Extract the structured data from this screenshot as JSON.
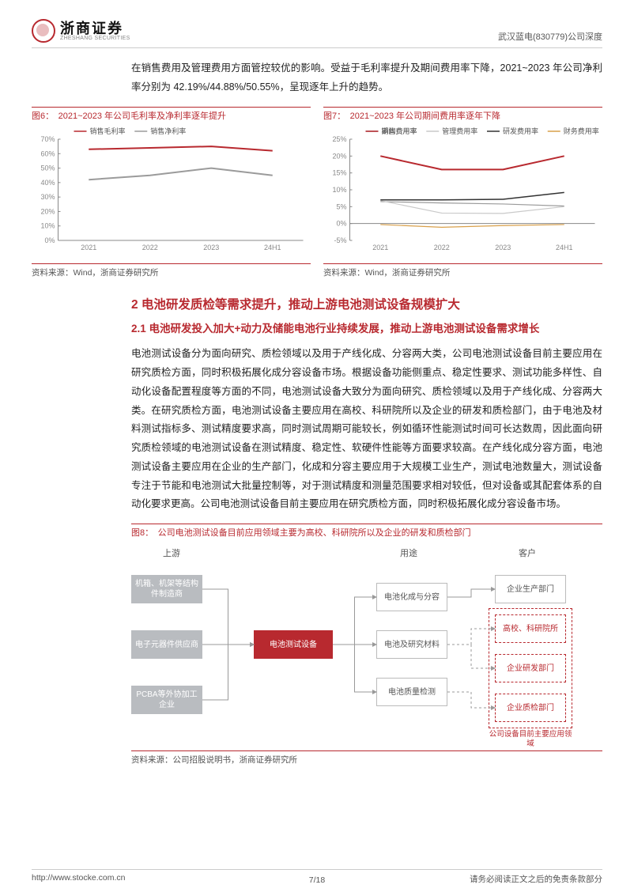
{
  "header": {
    "company_cn": "浙商证券",
    "company_en": "ZHESHANG SECURITIES",
    "doc_code": "武汉蓝电(830779)公司深度"
  },
  "intro": "在销售费用及管理费用方面管控较优的影响。受益于毛利率提升及期间费用率下降，2021~2023 年公司净利率分别为 42.19%/44.88%/50.55%，呈现逐年上升的趋势。",
  "fig6": {
    "title": "图6：　2021~2023 年公司毛利率及净利率逐年提升",
    "type": "line",
    "categories": [
      "2021",
      "2022",
      "2023",
      "24H1"
    ],
    "series": [
      {
        "name": "销售毛利率",
        "color": "#b8292f",
        "width": 2,
        "values": [
          63,
          64,
          65,
          62
        ]
      },
      {
        "name": "销售净利率",
        "color": "#9b9b9b",
        "width": 2,
        "values": [
          42,
          45,
          50,
          45
        ]
      }
    ],
    "ylim": [
      0,
      70
    ],
    "ytick_step": 10,
    "axis_color": "#888",
    "tick_fontsize": 9,
    "legend_fontsize": 9,
    "source": "资料来源：Wind，浙商证券研究所"
  },
  "fig7": {
    "title": "图7：　2021~2023 年公司期间费用率逐年下降",
    "type": "line",
    "categories": [
      "2021",
      "2022",
      "2023",
      "24H1"
    ],
    "series": [
      {
        "name": "销售费用率",
        "color": "#9b9b9b",
        "width": 1.2,
        "values": [
          6.5,
          6.1,
          5.8,
          5.2
        ]
      },
      {
        "name": "管理费用率",
        "color": "#c9c9c9",
        "width": 1.2,
        "values": [
          6.8,
          3.1,
          3.0,
          5.0
        ]
      },
      {
        "name": "研发费用率",
        "color": "#333333",
        "width": 1.5,
        "values": [
          7.0,
          7.0,
          7.2,
          9.2
        ]
      },
      {
        "name": "财务费用率",
        "color": "#d9a04a",
        "width": 1.2,
        "values": [
          -0.3,
          -1.1,
          -0.6,
          -0.3
        ]
      },
      {
        "name": "期间费用率",
        "color": "#b8292f",
        "width": 2,
        "values": [
          20,
          16,
          16,
          20
        ]
      }
    ],
    "ylim": [
      -5,
      25
    ],
    "ytick_step": 5,
    "axis_color": "#888",
    "tick_fontsize": 9,
    "legend_fontsize": 9,
    "source": "资料来源：Wind，浙商证券研究所"
  },
  "section": {
    "h2": "2 电池研发质检等需求提升，推动上游电池测试设备规模扩大",
    "h3": "2.1 电池研发投入加大+动力及储能电池行业持续发展，推动上游电池测试设备需求增长",
    "para": "电池测试设备分为面向研究、质检领域以及用于产线化成、分容两大类，公司电池测试设备目前主要应用在研究质检方面，同时积极拓展化成分容设备市场。根据设备功能侧重点、稳定性要求、测试功能多样性、自动化设备配置程度等方面的不同，电池测试设备大致分为面向研究、质检领域以及用于产线化成、分容两大类。在研究质检方面，电池测试设备主要应用在高校、科研院所以及企业的研发和质检部门，由于电池及材料测试指标多、测试精度要求高，同时测试周期可能较长，例如循环性能测试时间可长达数周，因此面向研究质检领域的电池测试设备在测试精度、稳定性、软硬件性能等方面要求较高。在产线化成分容方面，电池测试设备主要应用在企业的生产部门，化成和分容主要应用于大规模工业生产，测试电池数量大，测试设备专注于节能和电池测试大批量控制等，对于测试精度和测量范围要求相对较低，但对设备或其配套体系的自动化要求更高。公司电池测试设备目前主要应用在研究质检方面，同时积极拓展化成分容设备市场。"
  },
  "fig8": {
    "title": "图8：　公司电池测试设备目前应用领域主要为高校、科研院所以及企业的研发和质检部门",
    "col_labels": {
      "up": "上游",
      "use": "用途",
      "cust": "客户"
    },
    "upstream": [
      "机箱、机架等结构件制造商",
      "电子元器件供应商",
      "PCBA等外协加工企业"
    ],
    "center": "电池测试设备",
    "uses": [
      "电池化成与分容",
      "电池及研究材料",
      "电池质量检测"
    ],
    "customers": [
      "企业生产部门",
      "高校、科研院所",
      "企业研发部门",
      "企业质检部门"
    ],
    "dash_caption": "公司设备目前主要应用领域",
    "source": "资料来源：公司招股说明书，浙商证券研究所"
  },
  "footer": {
    "url": "http://www.stocke.com.cn",
    "page": "7/18",
    "disclaimer": "请务必阅读正文之后的免责条款部分"
  }
}
